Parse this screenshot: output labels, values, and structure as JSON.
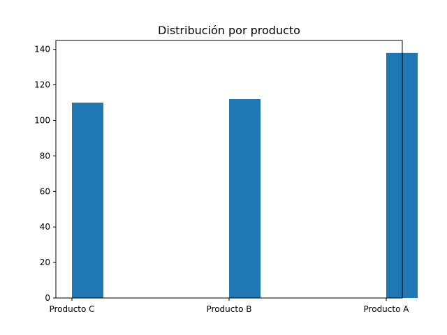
{
  "chart_data": {
    "type": "bar",
    "title": "Distribución por producto",
    "xlabel": "",
    "ylabel": "",
    "categories": [
      "Producto C",
      "Producto B",
      "Producto A"
    ],
    "values": [
      110,
      112,
      138
    ],
    "ylim": [
      0,
      145
    ],
    "yticks": [
      0,
      20,
      40,
      60,
      80,
      100,
      120,
      140
    ],
    "grid": false,
    "legend": null,
    "colors": {
      "bar": "#1f77b4"
    }
  }
}
